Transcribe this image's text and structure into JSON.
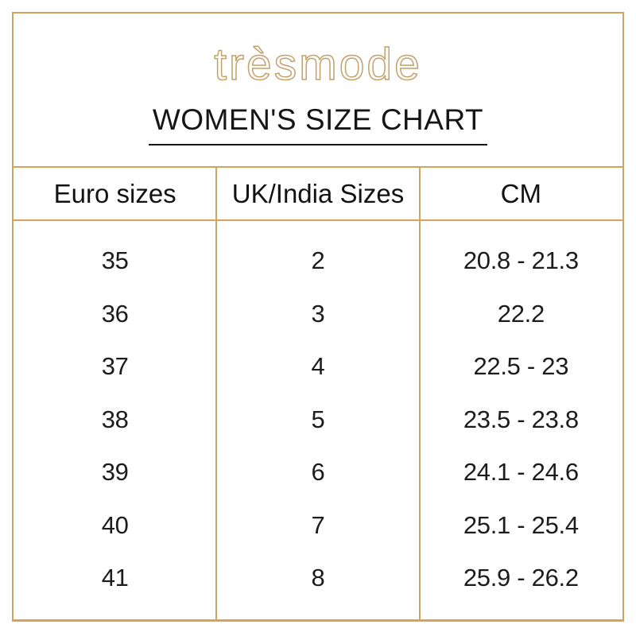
{
  "brand": {
    "logo_text": "trèsmode"
  },
  "page_title": "WOMEN'S SIZE CHART",
  "size_chart": {
    "columns": [
      "Euro sizes",
      "UK/India Sizes",
      "CM"
    ],
    "rows": [
      [
        "35",
        "2",
        "20.8 - 21.3"
      ],
      [
        "36",
        "3",
        "22.2"
      ],
      [
        "37",
        "4",
        "22.5 - 23"
      ],
      [
        "38",
        "5",
        "23.5 - 23.8"
      ],
      [
        "39",
        "6",
        "24.1 - 24.6"
      ],
      [
        "40",
        "7",
        "25.1 - 25.4"
      ],
      [
        "41",
        "8",
        "25.9 - 26.2"
      ]
    ]
  },
  "chart_data": {
    "type": "table",
    "title": "WOMEN'S SIZE CHART",
    "columns": [
      "Euro sizes",
      "UK/India Sizes",
      "CM"
    ],
    "rows": [
      [
        "35",
        "2",
        "20.8 - 21.3"
      ],
      [
        "36",
        "3",
        "22.2"
      ],
      [
        "37",
        "4",
        "22.5 - 23"
      ],
      [
        "38",
        "5",
        "23.5 - 23.8"
      ],
      [
        "39",
        "6",
        "24.1 - 24.6"
      ],
      [
        "40",
        "7",
        "25.1 - 25.4"
      ],
      [
        "41",
        "8",
        "25.9 - 26.2"
      ]
    ],
    "layout_hints": {
      "columns_equal_width": true,
      "row_separators": false,
      "column_separators": true,
      "header_separator": true
    }
  },
  "colors": {
    "gold_line": "#d2a65a",
    "logo_gold": "#c5a069",
    "text": "#1c1c1c",
    "background": "#ffffff"
  }
}
